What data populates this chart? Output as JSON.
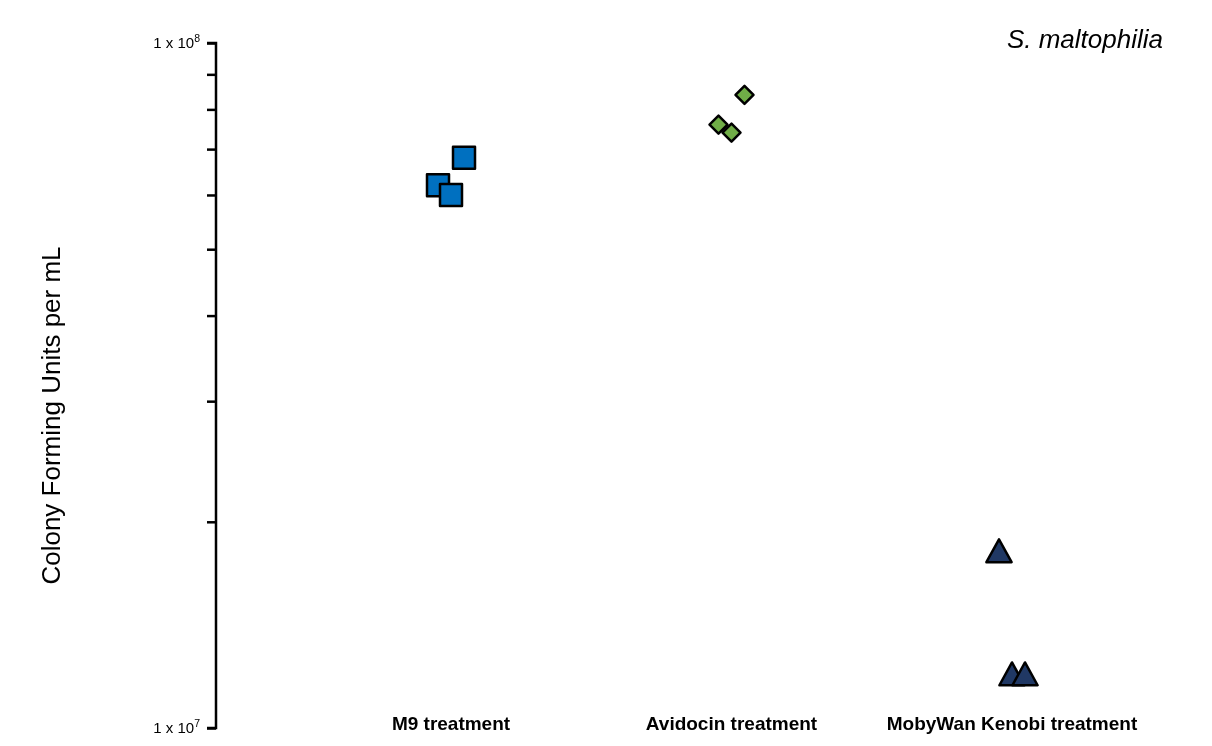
{
  "chart_data": {
    "type": "scatter",
    "title": "S. maltophilia",
    "ylabel": "Colony Forming Units per mL",
    "categories": [
      "M9 treatment",
      "Avidocin treatment",
      "MobyWan Kenobi treatment"
    ],
    "log": true,
    "grid": false,
    "ylim": [
      10000000,
      100000000
    ],
    "yticks": [
      {
        "value": 10000000,
        "label": "1 x 10$^{7}$"
      },
      {
        "value": 100000000,
        "label": "1 x 10$^{8}$"
      }
    ],
    "series": [
      {
        "type": "scatter",
        "marker": "square",
        "color": "#0070c0",
        "x": [
          "M9 treatment",
          "M9 treatment",
          "M9 treatment"
        ],
        "values": [
          62000000,
          60000000,
          68000000
        ]
      },
      {
        "type": "scatter",
        "marker": "diamond",
        "color": "#70ad47",
        "x": [
          "Avidocin treatment",
          "Avidocin treatment",
          "Avidocin treatment"
        ],
        "values": [
          76000000,
          74000000,
          84000000
        ]
      },
      {
        "type": "scatter",
        "marker": "triangle",
        "color": "#203864",
        "x": [
          "MobyWan Kenobi treatment",
          "MobyWan Kenobi treatment",
          "MobyWan Kenobi treatment"
        ],
        "values": [
          18000000,
          11900000,
          11900000
        ]
      }
    ]
  }
}
